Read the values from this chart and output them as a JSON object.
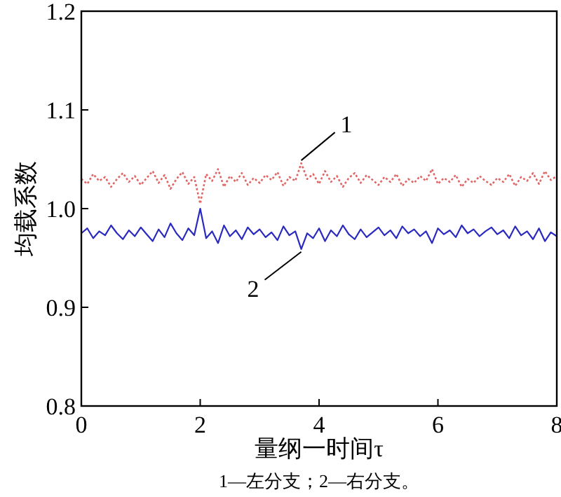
{
  "chart_data": {
    "type": "line",
    "xlabel": "量纲一时间τ",
    "ylabel": "均载系数",
    "xlim": [
      0,
      8
    ],
    "ylim": [
      0.8,
      1.2
    ],
    "xticks": [
      0,
      2,
      4,
      6,
      8
    ],
    "yticks": [
      0.8,
      0.9,
      {
        "value": 1,
        "label": "1.0"
      },
      1.1,
      1.2
    ],
    "grid": false,
    "marker": "none",
    "x": [
      0,
      0.1,
      0.2,
      0.3,
      0.4,
      0.5,
      0.6,
      0.7,
      0.8,
      0.9,
      1,
      1.1,
      1.2,
      1.3,
      1.4,
      1.5,
      1.6,
      1.7,
      1.8,
      1.9,
      2,
      2.1,
      2.2,
      2.3,
      2.4,
      2.5,
      2.6,
      2.7,
      2.8,
      2.9,
      3,
      3.1,
      3.2,
      3.3,
      3.4,
      3.5,
      3.6,
      3.7,
      3.8,
      3.9,
      4,
      4.1,
      4.2,
      4.3,
      4.4,
      4.5,
      4.6,
      4.7,
      4.8,
      4.9,
      5,
      5.1,
      5.2,
      5.3,
      5.4,
      5.5,
      5.6,
      5.7,
      5.8,
      5.9,
      6,
      6.1,
      6.2,
      6.3,
      6.4,
      6.5,
      6.6,
      6.7,
      6.8,
      6.9,
      7,
      7.1,
      7.2,
      7.3,
      7.4,
      7.5,
      7.6,
      7.7,
      7.8,
      7.9,
      8
    ],
    "series": [
      {
        "color": "#e06666",
        "line_style": "dotted",
        "values": [
          1.03,
          1.025,
          1.035,
          1.028,
          1.032,
          1.022,
          1.03,
          1.036,
          1.027,
          1.033,
          1.024,
          1.031,
          1.038,
          1.026,
          1.034,
          1.02,
          1.03,
          1.037,
          1.025,
          1.032,
          1.005,
          1.035,
          1.028,
          1.04,
          1.022,
          1.033,
          1.027,
          1.036,
          1.024,
          1.031,
          1.026,
          1.034,
          1.029,
          1.037,
          1.023,
          1.032,
          1.028,
          1.046,
          1.03,
          1.035,
          1.025,
          1.038,
          1.027,
          1.033,
          1.022,
          1.031,
          1.036,
          1.026,
          1.034,
          1.029,
          1.024,
          1.032,
          1.027,
          1.035,
          1.023,
          1.03,
          1.026,
          1.033,
          1.028,
          1.04,
          1.025,
          1.031,
          1.027,
          1.034,
          1.022,
          1.03,
          1.026,
          1.033,
          1.028,
          1.024,
          1.031,
          1.027,
          1.035,
          1.023,
          1.032,
          1.028,
          1.036,
          1.025,
          1.038,
          1.029,
          1.033
        ]
      },
      {
        "color": "#2a2ac0",
        "line_style": "solid",
        "values": [
          0.975,
          0.98,
          0.97,
          0.977,
          0.973,
          0.983,
          0.975,
          0.969,
          0.978,
          0.972,
          0.981,
          0.974,
          0.967,
          0.979,
          0.971,
          0.985,
          0.975,
          0.968,
          0.98,
          0.973,
          1.0,
          0.97,
          0.977,
          0.965,
          0.983,
          0.972,
          0.978,
          0.969,
          0.981,
          0.974,
          0.979,
          0.971,
          0.976,
          0.968,
          0.982,
          0.973,
          0.977,
          0.959,
          0.975,
          0.97,
          0.98,
          0.967,
          0.978,
          0.972,
          0.983,
          0.974,
          0.969,
          0.979,
          0.971,
          0.976,
          0.981,
          0.973,
          0.978,
          0.97,
          0.982,
          0.975,
          0.979,
          0.972,
          0.977,
          0.965,
          0.98,
          0.974,
          0.978,
          0.971,
          0.983,
          0.975,
          0.979,
          0.972,
          0.977,
          0.981,
          0.974,
          0.978,
          0.97,
          0.982,
          0.973,
          0.977,
          0.969,
          0.98,
          0.967,
          0.976,
          0.972
        ]
      }
    ],
    "annotations": [
      {
        "text": "1",
        "x": 3.7,
        "y": 1.046
      },
      {
        "text": "2",
        "x": 3.7,
        "y": 0.959
      },
      "1—左分支；2—右分支。"
    ]
  }
}
